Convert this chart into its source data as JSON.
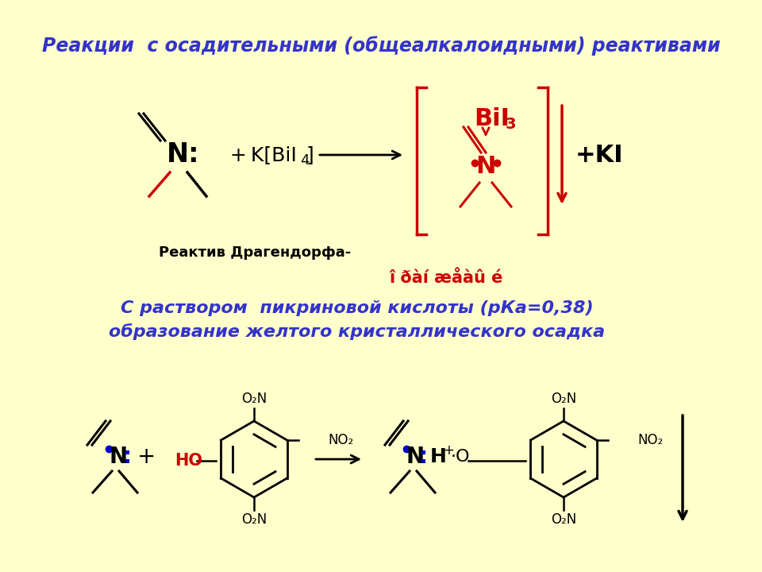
{
  "background_color": "#FFFFCC",
  "title": "Реакции  с осадительными (общеалкалоидными) реактивами",
  "title_color": "#3333CC",
  "title_fontsize": 17,
  "subtitle1": "С раствором  пикриновой кислоты (рКа=0,38)",
  "subtitle2": "образование желтого кристаллического осадка",
  "subtitle_color": "#3333CC",
  "subtitle_fontsize": 16,
  "label_reaktiv": "Реактив Драгендорфа-",
  "label_osadok": "î ðàí æåàû é",
  "label_osadok_color": "#CC0000",
  "red": "#CC0000",
  "black": "#000000",
  "blue": "#0000CC"
}
